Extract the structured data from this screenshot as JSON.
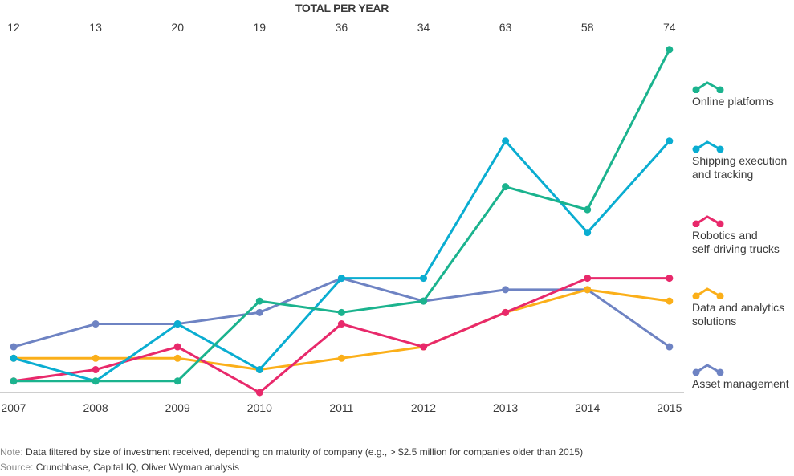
{
  "chart_data": {
    "type": "line",
    "title": "TOTAL PER YEAR",
    "xlabel": "",
    "ylabel": "",
    "x": [
      "2007",
      "2008",
      "2009",
      "2010",
      "2011",
      "2012",
      "2013",
      "2014",
      "2015"
    ],
    "totals": [
      12,
      13,
      20,
      19,
      36,
      34,
      63,
      58,
      74
    ],
    "ylim": [
      0,
      30
    ],
    "grid": false,
    "legend_position": "right",
    "series": [
      {
        "name": "Online platforms",
        "color": "#1bb38e",
        "values": [
          1,
          1,
          1,
          8,
          7,
          8,
          18,
          16,
          30
        ]
      },
      {
        "name": "Shipping execution and tracking",
        "color": "#0aadd1",
        "values": [
          3,
          1,
          6,
          2,
          10,
          10,
          22,
          14,
          22
        ]
      },
      {
        "name": "Robotics and self-driving trucks",
        "color": "#e8296b",
        "values": [
          1,
          2,
          4,
          0,
          6,
          4,
          7,
          10,
          10
        ]
      },
      {
        "name": "Data and analytics solutions",
        "color": "#fbaf19",
        "values": [
          3,
          3,
          3,
          2,
          3,
          4,
          7,
          9,
          8
        ]
      },
      {
        "name": "Asset management",
        "color": "#6e83c3",
        "values": [
          4,
          6,
          6,
          7,
          10,
          8,
          9,
          9,
          4
        ]
      }
    ]
  },
  "legend": [
    {
      "lines": [
        "Online platforms"
      ]
    },
    {
      "lines": [
        "Shipping execution",
        "and tracking"
      ]
    },
    {
      "lines": [
        "Robotics and",
        "self-driving trucks"
      ]
    },
    {
      "lines": [
        "Data and analytics",
        "solutions"
      ]
    },
    {
      "lines": [
        "Asset management"
      ]
    }
  ],
  "footer": {
    "note_prefix": "Note:",
    "note_text": " Data filtered by size of investment received, depending on maturity of company (e.g., > $2.5 million for companies older than 2015)",
    "source_prefix": "Source:",
    "source_text": " Crunchbase, Capital IQ, Oliver Wyman analysis"
  },
  "colors": {
    "axis": "#b0b0b0",
    "text": "#3a3a3a",
    "muted": "#8a8a8a"
  }
}
